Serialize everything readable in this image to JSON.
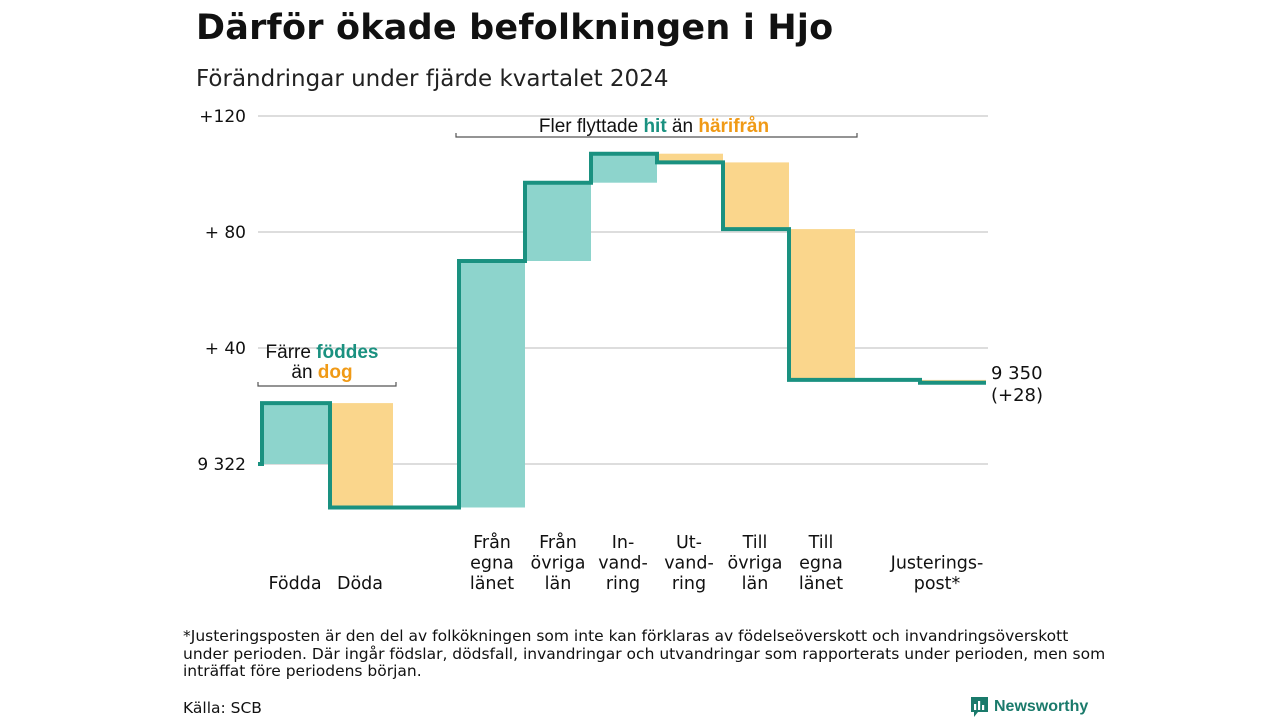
{
  "title": "Därför ökade befolkningen i Hjo",
  "subtitle": "Förändringar under fjärde kvartalet 2024",
  "colors": {
    "increase_fill": "#8dd4cc",
    "decrease_fill": "#fad68c",
    "step_line": "#1a9180",
    "teal_text": "#1a9180",
    "orange_text": "#f09a16",
    "grid": "#dddddd"
  },
  "chart_data": {
    "type": "waterfall",
    "start_value": 9322,
    "start_label": "9 322",
    "y_ticks": [
      {
        "value": 0,
        "label": "9 322"
      },
      {
        "value": 40,
        "label": "+ 40"
      },
      {
        "value": 80,
        "label": "+ 80"
      },
      {
        "value": 120,
        "label": "+120"
      }
    ],
    "ylim": [
      -20,
      120
    ],
    "steps": [
      {
        "label": "Födda",
        "change": 21,
        "direction": "increase"
      },
      {
        "label": "Döda",
        "change": -36,
        "direction": "decrease"
      },
      {
        "label": "",
        "change": 0,
        "direction": "gap"
      },
      {
        "label": "Från egna länet",
        "change": 85,
        "direction": "increase"
      },
      {
        "label": "Från övriga län",
        "change": 27,
        "direction": "increase"
      },
      {
        "label": "In-vandring",
        "change": 10,
        "direction": "increase"
      },
      {
        "label": "Ut-vandring",
        "change": -3,
        "direction": "decrease"
      },
      {
        "label": "Till övriga län",
        "change": -23,
        "direction": "decrease"
      },
      {
        "label": "Till egna länet",
        "change": -52,
        "direction": "decrease"
      },
      {
        "label": "",
        "change": 0,
        "direction": "gap"
      },
      {
        "label": "Justerings-post*",
        "change": -1,
        "direction": "decrease"
      }
    ],
    "category_labels": [
      {
        "lines": [
          "Födda"
        ]
      },
      {
        "lines": [
          "Döda"
        ]
      },
      {
        "lines": [
          "Från",
          "egna",
          "länet"
        ]
      },
      {
        "lines": [
          "Från",
          "övriga",
          "län"
        ]
      },
      {
        "lines": [
          "In-",
          "vand-",
          "ring"
        ]
      },
      {
        "lines": [
          "Ut-",
          "vand-",
          "ring"
        ]
      },
      {
        "lines": [
          "Till",
          "övriga",
          "län"
        ]
      },
      {
        "lines": [
          "Till",
          "egna",
          "länet"
        ]
      },
      {
        "lines": [
          "Justerings-",
          "post*"
        ]
      }
    ],
    "end_value": 9350,
    "end_label_line1": "9 350",
    "end_label_line2": "(+28)",
    "annotations": [
      {
        "parts": [
          {
            "text": "Fler flyttade ",
            "style": "plain"
          },
          {
            "text": "hit",
            "style": "teal"
          },
          {
            "text": "  än ",
            "style": "plain"
          },
          {
            "text": "härifrån",
            "style": "orange"
          }
        ]
      },
      {
        "parts": [
          {
            "text": "Färre ",
            "style": "plain"
          },
          {
            "text": "föddes",
            "style": "teal"
          }
        ]
      },
      {
        "parts": [
          {
            "text": "än ",
            "style": "plain"
          },
          {
            "text": "dog",
            "style": "orange"
          }
        ]
      }
    ]
  },
  "footnote": "*Justeringsposten är den del av folkökningen som inte kan förklaras av födelseöverskott och invandringsöverskott under perioden. Där ingår födslar, dödsfall, invandringar och utvandringar som rapporterats under perioden, men som inträffat före periodens början.",
  "source": "Källa: SCB",
  "brand": {
    "name": "Newsworthy",
    "icon": "newsworthy-logo-icon"
  }
}
